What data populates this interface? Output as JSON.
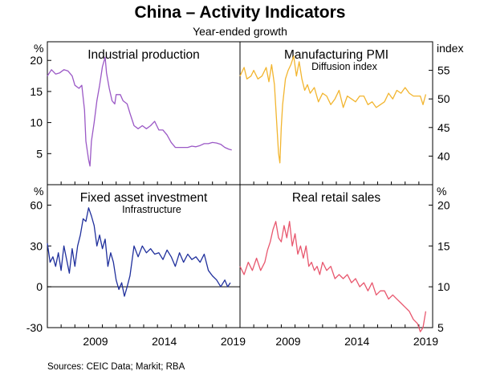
{
  "title": "China – Activity Indicators",
  "subtitle": "Year-ended growth",
  "source": "Sources:   CEIC Data; Markit; RBA",
  "colors": {
    "ip": "#9b59c6",
    "pmi": "#f2b52f",
    "fai": "#1f2f9c",
    "retail": "#e8576e"
  },
  "x_ticks": [
    "2009",
    "2014",
    "2019"
  ],
  "chart_data": [
    {
      "type": "line",
      "title": "Industrial production",
      "subtitle": "",
      "unit_label": "%",
      "ylim": [
        0,
        23
      ],
      "yticks": [
        5,
        10,
        15,
        20
      ],
      "axis_side": "left",
      "x_range": [
        2006,
        2020
      ],
      "series": [
        {
          "x": [
            2006.0,
            2006.3,
            2006.6,
            2006.9,
            2007.2,
            2007.5,
            2007.8,
            2008.0,
            2008.3,
            2008.5,
            2008.7,
            2008.8,
            2008.9,
            2009.0,
            2009.1,
            2009.2,
            2009.4,
            2009.6,
            2009.8,
            2010.0,
            2010.2,
            2010.3,
            2010.5,
            2010.7,
            2010.9,
            2011.0,
            2011.3,
            2011.5,
            2011.8,
            2012.0,
            2012.3,
            2012.6,
            2012.9,
            2013.2,
            2013.5,
            2013.8,
            2014.1,
            2014.4,
            2014.7,
            2015.0,
            2015.3,
            2015.6,
            2015.9,
            2016.2,
            2016.5,
            2016.8,
            2017.1,
            2017.4,
            2017.7,
            2018.0,
            2018.3,
            2018.6,
            2018.9,
            2019.2,
            2019.4
          ],
          "values": [
            17.5,
            18.5,
            17.8,
            18.0,
            18.5,
            18.3,
            17.5,
            16.0,
            15.5,
            16.0,
            12.0,
            7.0,
            5.5,
            4.0,
            3.0,
            7.0,
            10.0,
            13.5,
            16.0,
            19.0,
            20.5,
            18.0,
            15.5,
            13.5,
            13.0,
            14.5,
            14.5,
            13.5,
            13.0,
            11.5,
            9.5,
            9.0,
            9.5,
            9.0,
            9.5,
            10.2,
            8.8,
            8.8,
            8.0,
            6.8,
            6.0,
            6.0,
            6.0,
            6.0,
            6.2,
            6.1,
            6.3,
            6.6,
            6.6,
            6.8,
            6.7,
            6.5,
            6.0,
            5.7,
            5.6
          ]
        }
      ]
    },
    {
      "type": "line",
      "title": "Manufacturing PMI",
      "subtitle": "Diffusion index",
      "unit_label": "index",
      "ylim": [
        35,
        60
      ],
      "yticks": [
        40,
        45,
        50,
        55
      ],
      "axis_side": "right",
      "x_range": [
        2006,
        2020
      ],
      "series": [
        {
          "x": [
            2006.0,
            2006.3,
            2006.5,
            2006.8,
            2007.0,
            2007.3,
            2007.6,
            2007.9,
            2008.1,
            2008.3,
            2008.5,
            2008.6,
            2008.7,
            2008.8,
            2008.9,
            2009.0,
            2009.1,
            2009.3,
            2009.5,
            2009.7,
            2009.9,
            2010.1,
            2010.3,
            2010.5,
            2010.7,
            2010.9,
            2011.1,
            2011.4,
            2011.7,
            2012.0,
            2012.3,
            2012.6,
            2012.9,
            2013.2,
            2013.5,
            2013.8,
            2014.1,
            2014.4,
            2014.7,
            2015.0,
            2015.3,
            2015.6,
            2015.9,
            2016.2,
            2016.5,
            2016.8,
            2017.1,
            2017.4,
            2017.7,
            2018.0,
            2018.3,
            2018.6,
            2018.9,
            2019.1,
            2019.3,
            2019.5
          ],
          "values": [
            54.0,
            55.5,
            53.5,
            54.0,
            55.0,
            53.5,
            54.0,
            55.5,
            53.0,
            56.0,
            52.5,
            48.5,
            44.5,
            40.5,
            38.8,
            45.0,
            49.0,
            53.5,
            55.0,
            56.0,
            57.5,
            54.0,
            56.5,
            53.5,
            51.5,
            52.5,
            51.0,
            52.0,
            49.5,
            51.0,
            50.5,
            49.0,
            50.0,
            51.5,
            48.5,
            50.5,
            50.0,
            49.5,
            50.5,
            50.5,
            49.0,
            49.5,
            48.5,
            49.0,
            49.5,
            51.0,
            50.0,
            51.5,
            51.0,
            52.0,
            51.0,
            50.5,
            50.5,
            50.5,
            49.0,
            50.8
          ]
        }
      ]
    },
    {
      "type": "line",
      "title": "Fixed asset investment",
      "subtitle": "Infrastructure",
      "unit_label": "%",
      "ylim": [
        -30,
        75
      ],
      "yticks": [
        -30,
        0,
        30,
        60
      ],
      "axis_side": "left",
      "x_range": [
        2006,
        2020
      ],
      "series": [
        {
          "x": [
            2006.0,
            2006.2,
            2006.4,
            2006.6,
            2006.8,
            2007.0,
            2007.2,
            2007.4,
            2007.6,
            2007.8,
            2008.0,
            2008.2,
            2008.4,
            2008.6,
            2008.8,
            2009.0,
            2009.2,
            2009.4,
            2009.6,
            2009.8,
            2010.0,
            2010.2,
            2010.4,
            2010.6,
            2010.8,
            2011.0,
            2011.2,
            2011.4,
            2011.6,
            2011.8,
            2012.0,
            2012.3,
            2012.6,
            2012.9,
            2013.2,
            2013.5,
            2013.8,
            2014.1,
            2014.4,
            2014.7,
            2015.0,
            2015.3,
            2015.6,
            2015.9,
            2016.2,
            2016.5,
            2016.8,
            2017.1,
            2017.4,
            2017.7,
            2018.0,
            2018.3,
            2018.6,
            2018.9,
            2019.1,
            2019.3
          ],
          "values": [
            32,
            18,
            22,
            15,
            25,
            12,
            30,
            20,
            10,
            28,
            15,
            30,
            38,
            50,
            48,
            58,
            52,
            45,
            30,
            38,
            28,
            35,
            15,
            25,
            18,
            5,
            -2,
            3,
            -7,
            0,
            8,
            30,
            22,
            30,
            25,
            28,
            24,
            25,
            20,
            27,
            22,
            15,
            25,
            18,
            24,
            20,
            22,
            18,
            24,
            12,
            8,
            5,
            0,
            5,
            0,
            3
          ]
        }
      ]
    },
    {
      "type": "line",
      "title": "Real retail sales",
      "subtitle": "",
      "unit_label": "%",
      "ylim": [
        5,
        22.5
      ],
      "yticks": [
        5,
        10,
        15,
        20
      ],
      "axis_side": "right",
      "x_range": [
        2006,
        2020
      ],
      "series": [
        {
          "x": [
            2006.0,
            2006.3,
            2006.6,
            2006.9,
            2007.2,
            2007.5,
            2007.8,
            2008.0,
            2008.2,
            2008.4,
            2008.6,
            2008.8,
            2009.0,
            2009.2,
            2009.4,
            2009.6,
            2009.8,
            2010.0,
            2010.2,
            2010.4,
            2010.6,
            2010.8,
            2011.0,
            2011.2,
            2011.4,
            2011.6,
            2011.8,
            2012.0,
            2012.3,
            2012.6,
            2012.9,
            2013.2,
            2013.5,
            2013.8,
            2014.1,
            2014.4,
            2014.7,
            2015.0,
            2015.3,
            2015.6,
            2015.9,
            2016.2,
            2016.5,
            2016.8,
            2017.1,
            2017.4,
            2017.7,
            2018.0,
            2018.3,
            2018.6,
            2018.9,
            2019.1,
            2019.3,
            2019.5
          ],
          "values": [
            12.5,
            11.5,
            13.0,
            12.0,
            13.5,
            12.0,
            13.0,
            14.5,
            15.5,
            17.0,
            18.0,
            16.0,
            15.5,
            17.5,
            16.0,
            18.0,
            15.0,
            16.5,
            14.0,
            15.0,
            13.5,
            15.0,
            12.5,
            13.0,
            12.0,
            12.5,
            11.5,
            13.0,
            12.0,
            12.5,
            11.0,
            11.5,
            11.0,
            11.5,
            10.5,
            11.0,
            10.0,
            10.5,
            9.5,
            10.5,
            9.0,
            9.5,
            9.5,
            8.5,
            9.0,
            8.5,
            8.0,
            7.5,
            7.0,
            6.0,
            5.5,
            4.5,
            5.0,
            7.0
          ]
        }
      ]
    }
  ]
}
